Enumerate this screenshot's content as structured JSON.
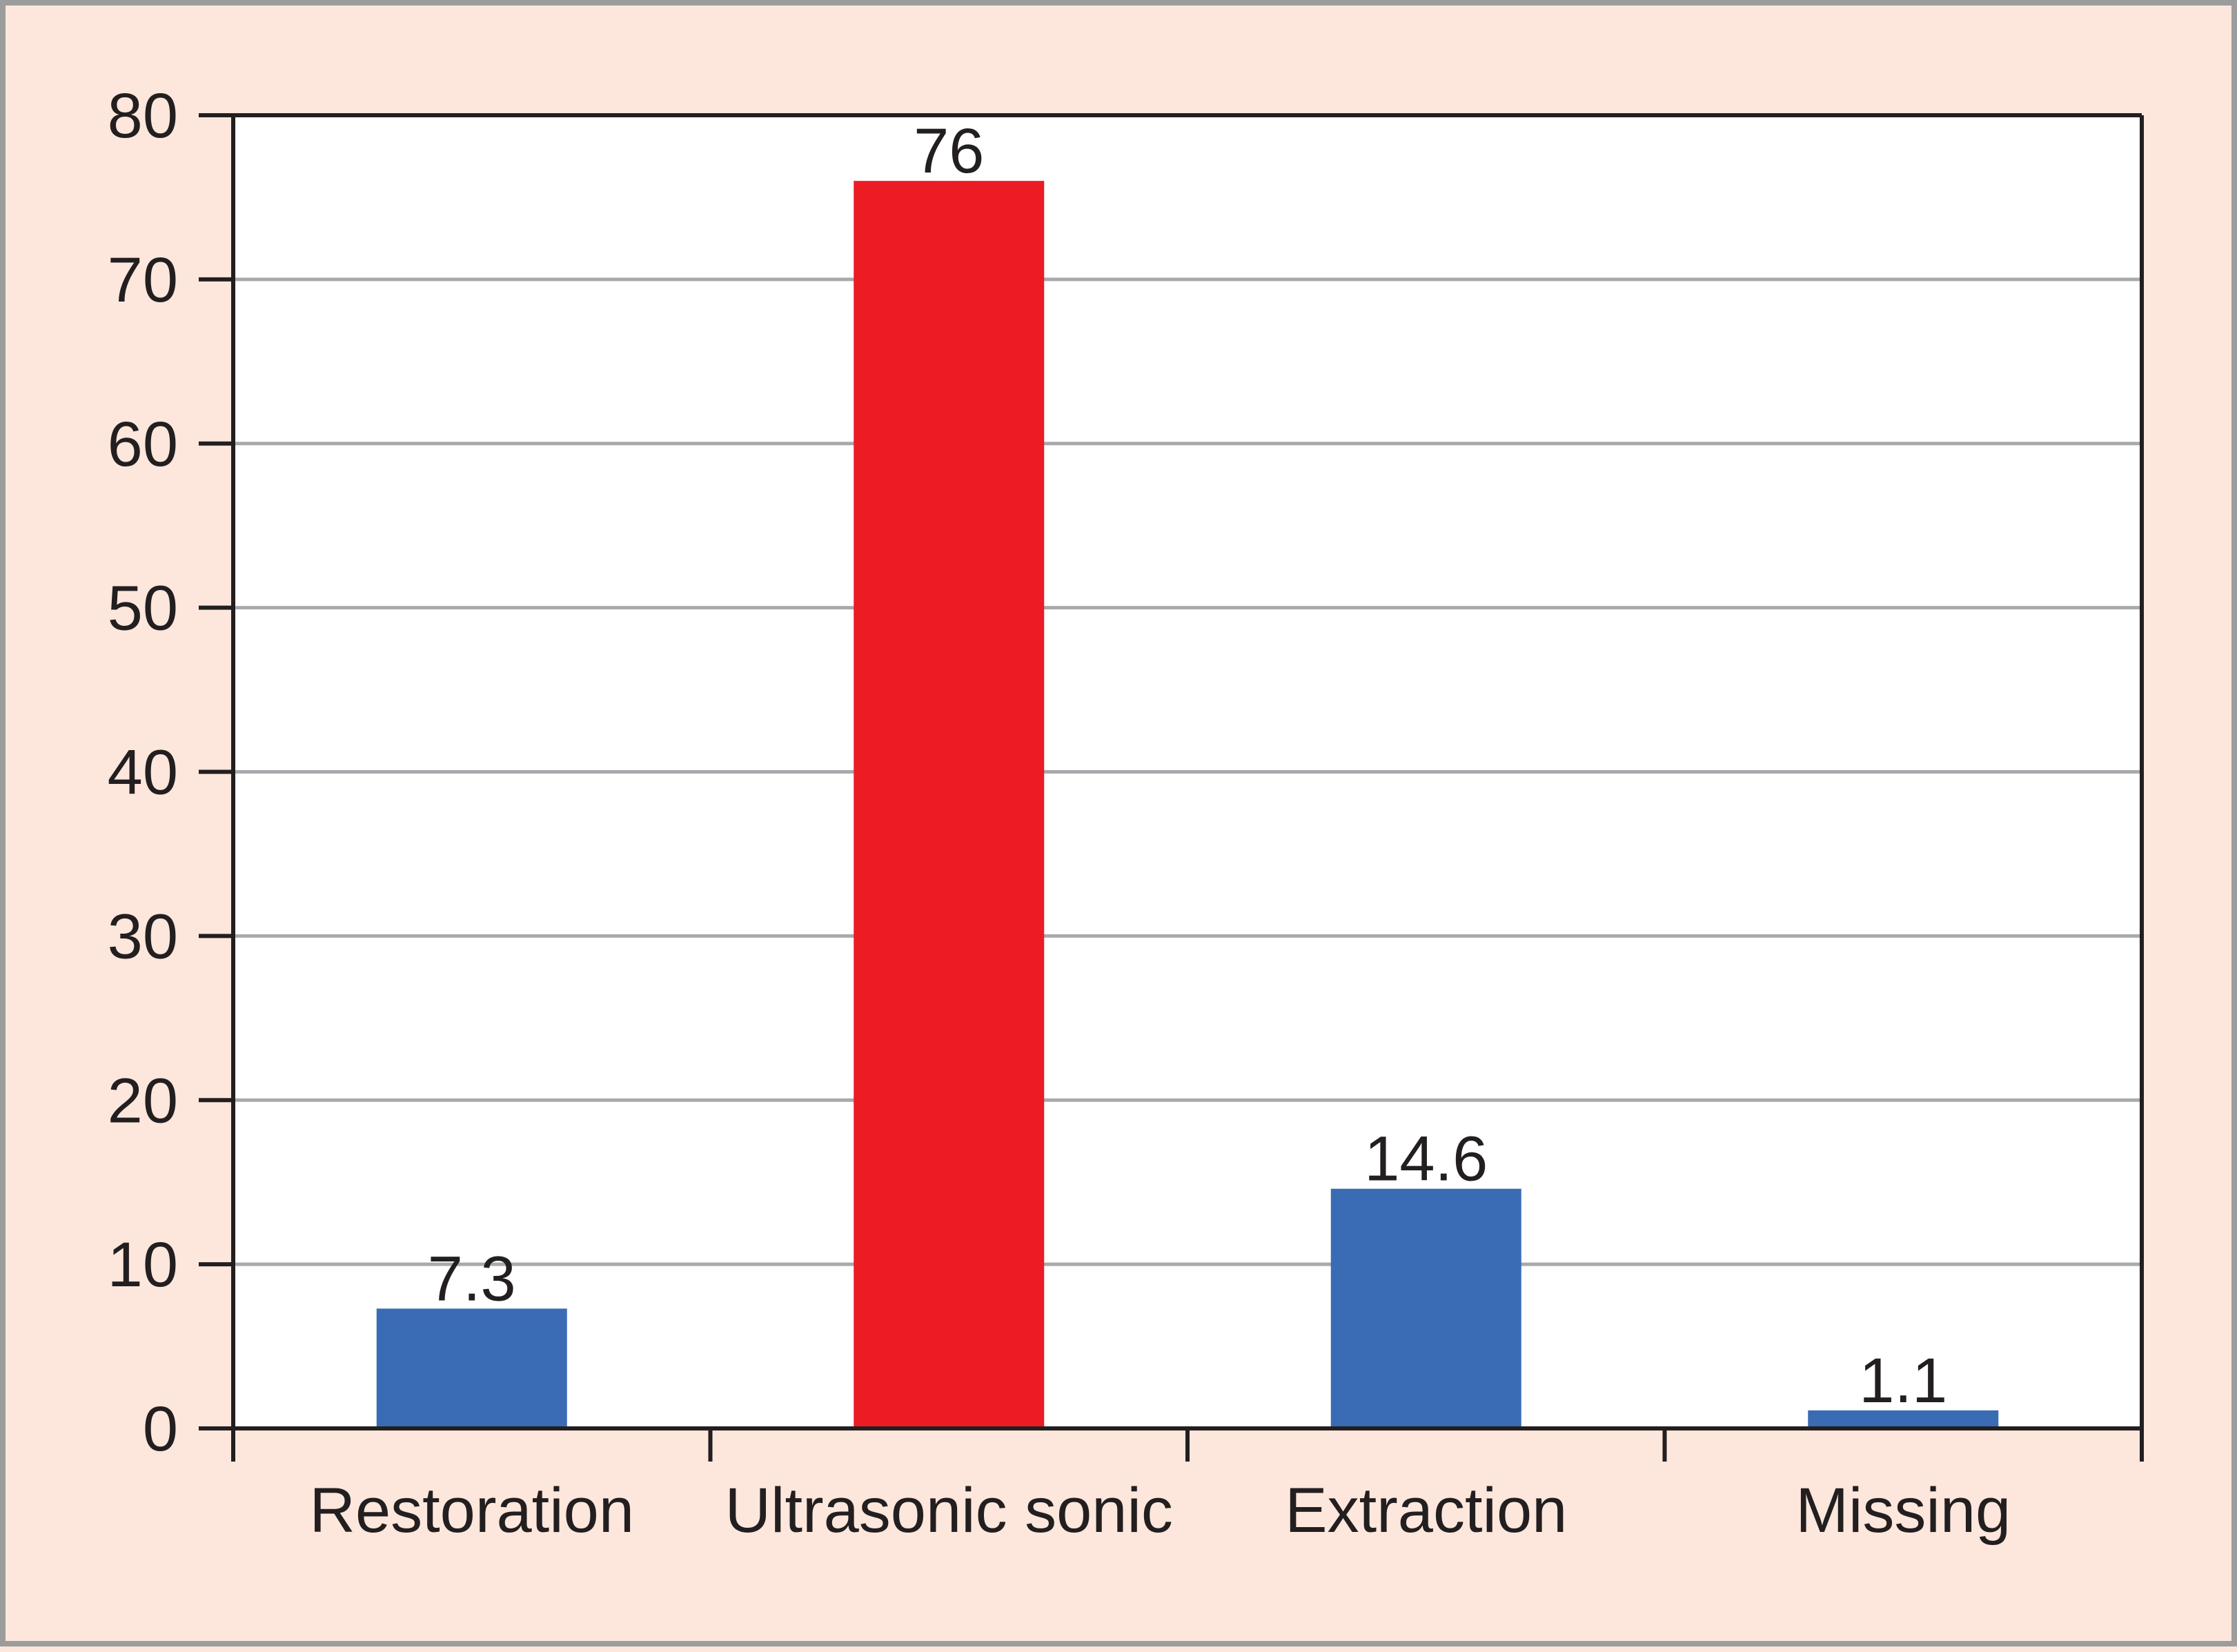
{
  "chart_data": {
    "type": "bar",
    "title": "",
    "xlabel": "",
    "ylabel": "",
    "categories": [
      "Restoration",
      "Ultrasonic sonic",
      "Extraction",
      "Missing"
    ],
    "values": [
      7.3,
      76,
      14.6,
      1.1
    ],
    "value_labels": [
      "7.3",
      "76",
      "14.6",
      "1.1"
    ],
    "bar_colors": [
      "#3a6bb5",
      "#ec1c24",
      "#3a6bb5",
      "#3a6bb5"
    ],
    "ylim": [
      0,
      80
    ],
    "yticks": [
      0,
      10,
      20,
      30,
      40,
      50,
      60,
      70,
      80
    ],
    "ytick_labels": [
      "0",
      "10",
      "20",
      "30",
      "40",
      "50",
      "60",
      "70",
      "80"
    ],
    "grid": true,
    "grid_color": "#a7a9ac",
    "background_color": "#fde6dc",
    "plot_background_color": "#ffffff",
    "legend": "none"
  }
}
